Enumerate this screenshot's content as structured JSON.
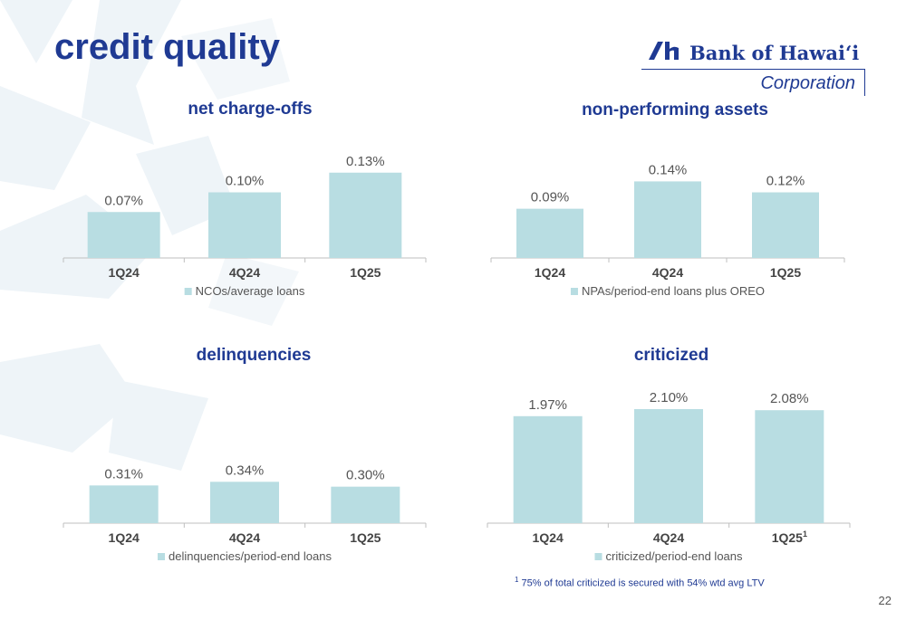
{
  "slide": {
    "title": "credit quality",
    "page_number": "22"
  },
  "logo": {
    "bank": "Bank of Hawaiʻi",
    "corp": "Corporation"
  },
  "colors": {
    "title": "#1f3a93",
    "bar": "#b8dde2",
    "axis": "#bfbfbf",
    "label": "#555555",
    "tick": "#444444"
  },
  "chart_data": [
    {
      "type": "bar",
      "title": "net charge-offs",
      "categories": [
        "1Q24",
        "4Q24",
        "1Q25"
      ],
      "value_labels": [
        "0.07%",
        "0.10%",
        "0.13%"
      ],
      "series": [
        {
          "name": "NCOs/average loans",
          "values": [
            0.07,
            0.1,
            0.13
          ]
        }
      ],
      "ylim": [
        0,
        0.2
      ],
      "grid": false,
      "legend": "bottom"
    },
    {
      "type": "bar",
      "title": "non-performing assets",
      "categories": [
        "1Q24",
        "4Q24",
        "1Q25"
      ],
      "value_labels": [
        "0.09%",
        "0.14%",
        "0.12%"
      ],
      "series": [
        {
          "name": "NPAs/period-end loans plus OREO",
          "values": [
            0.09,
            0.14,
            0.12
          ]
        }
      ],
      "ylim": [
        0,
        0.24
      ],
      "grid": false,
      "legend": "bottom"
    },
    {
      "type": "bar",
      "title": "delinquencies",
      "categories": [
        "1Q24",
        "4Q24",
        "1Q25"
      ],
      "value_labels": [
        "0.31%",
        "0.34%",
        "0.30%"
      ],
      "series": [
        {
          "name": "delinquencies/period-end loans",
          "values": [
            0.31,
            0.34,
            0.3
          ]
        }
      ],
      "ylim": [
        0,
        1.25
      ],
      "grid": false,
      "legend": "bottom"
    },
    {
      "type": "bar",
      "title": "criticized",
      "categories": [
        "1Q24",
        "4Q24",
        "1Q25"
      ],
      "category_footnotes": [
        "",
        "",
        "1"
      ],
      "value_labels": [
        "1.97%",
        "2.10%",
        "2.08%"
      ],
      "series": [
        {
          "name": "criticized/period-end loans",
          "values": [
            1.97,
            2.1,
            2.08
          ]
        }
      ],
      "ylim": [
        0,
        2.8
      ],
      "grid": false,
      "legend": "bottom"
    }
  ],
  "footnote": {
    "marker": "1",
    "text": "75% of total criticized is secured with 54% wtd avg LTV"
  }
}
